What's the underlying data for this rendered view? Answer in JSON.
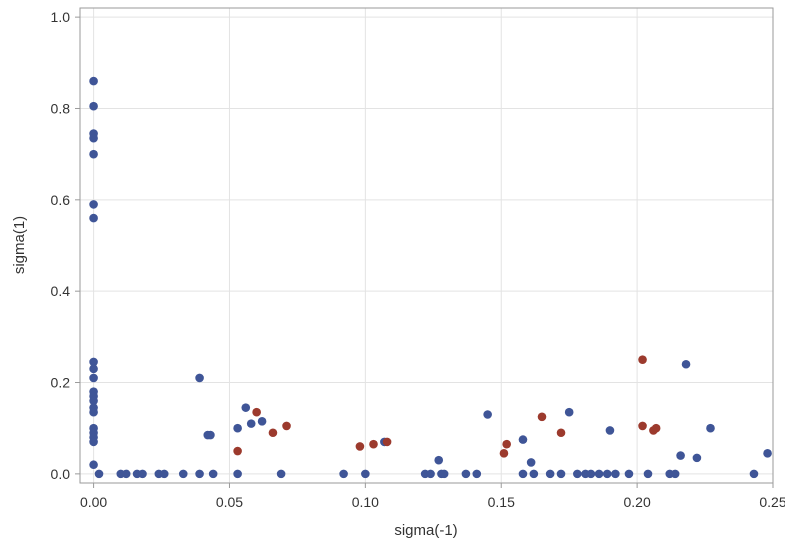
{
  "chart_data": {
    "type": "scatter",
    "title": "",
    "xlabel": "sigma(-1)",
    "ylabel": "sigma(1)",
    "xlim": [
      -0.005,
      0.25
    ],
    "ylim": [
      -0.02,
      1.02
    ],
    "xticks": [
      "0.00",
      "0.05",
      "0.10",
      "0.15",
      "0.20",
      "0.25"
    ],
    "yticks": [
      "0.0",
      "0.2",
      "0.4",
      "0.6",
      "0.8",
      "1.0"
    ],
    "grid": true,
    "legend": "none",
    "colors": {
      "series_a": "#3f5597",
      "series_b": "#9c3a2d",
      "grid": "#e3e3e3",
      "frame": "#9a9a9a"
    },
    "series": [
      {
        "color": "#3f5597",
        "points": [
          [
            0.0,
            0.86
          ],
          [
            0.0,
            0.805
          ],
          [
            0.0,
            0.745
          ],
          [
            0.0,
            0.735
          ],
          [
            0.0,
            0.7
          ],
          [
            0.0,
            0.59
          ],
          [
            0.0,
            0.56
          ],
          [
            0.0,
            0.245
          ],
          [
            0.0,
            0.23
          ],
          [
            0.0,
            0.21
          ],
          [
            0.0,
            0.18
          ],
          [
            0.0,
            0.17
          ],
          [
            0.0,
            0.16
          ],
          [
            0.0,
            0.145
          ],
          [
            0.0,
            0.135
          ],
          [
            0.0,
            0.1
          ],
          [
            0.0,
            0.09
          ],
          [
            0.0,
            0.08
          ],
          [
            0.0,
            0.07
          ],
          [
            0.0,
            0.02
          ],
          [
            0.002,
            0.0
          ],
          [
            0.01,
            0.0
          ],
          [
            0.012,
            0.0
          ],
          [
            0.016,
            0.0
          ],
          [
            0.018,
            0.0
          ],
          [
            0.024,
            0.0
          ],
          [
            0.026,
            0.0
          ],
          [
            0.033,
            0.0
          ],
          [
            0.039,
            0.0
          ],
          [
            0.044,
            0.0
          ],
          [
            0.039,
            0.21
          ],
          [
            0.042,
            0.085
          ],
          [
            0.043,
            0.085
          ],
          [
            0.053,
            0.1
          ],
          [
            0.053,
            0.0
          ],
          [
            0.056,
            0.145
          ],
          [
            0.058,
            0.11
          ],
          [
            0.062,
            0.115
          ],
          [
            0.069,
            0.0
          ],
          [
            0.092,
            0.0
          ],
          [
            0.1,
            0.0
          ],
          [
            0.107,
            0.07
          ],
          [
            0.122,
            0.0
          ],
          [
            0.124,
            0.0
          ],
          [
            0.127,
            0.03
          ],
          [
            0.128,
            0.0
          ],
          [
            0.129,
            0.0
          ],
          [
            0.137,
            0.0
          ],
          [
            0.141,
            0.0
          ],
          [
            0.145,
            0.13
          ],
          [
            0.158,
            0.075
          ],
          [
            0.158,
            0.0
          ],
          [
            0.161,
            0.025
          ],
          [
            0.162,
            0.0
          ],
          [
            0.168,
            0.0
          ],
          [
            0.172,
            0.0
          ],
          [
            0.175,
            0.135
          ],
          [
            0.178,
            0.0
          ],
          [
            0.181,
            0.0
          ],
          [
            0.183,
            0.0
          ],
          [
            0.186,
            0.0
          ],
          [
            0.189,
            0.0
          ],
          [
            0.19,
            0.095
          ],
          [
            0.192,
            0.0
          ],
          [
            0.197,
            0.0
          ],
          [
            0.204,
            0.0
          ],
          [
            0.212,
            0.0
          ],
          [
            0.214,
            0.0
          ],
          [
            0.216,
            0.04
          ],
          [
            0.218,
            0.24
          ],
          [
            0.222,
            0.035
          ],
          [
            0.227,
            0.1
          ],
          [
            0.243,
            0.0
          ],
          [
            0.248,
            0.045
          ]
        ]
      },
      {
        "color": "#9c3a2d",
        "points": [
          [
            0.053,
            0.05
          ],
          [
            0.06,
            0.135
          ],
          [
            0.066,
            0.09
          ],
          [
            0.071,
            0.105
          ],
          [
            0.098,
            0.06
          ],
          [
            0.103,
            0.065
          ],
          [
            0.108,
            0.07
          ],
          [
            0.151,
            0.045
          ],
          [
            0.152,
            0.065
          ],
          [
            0.165,
            0.125
          ],
          [
            0.172,
            0.09
          ],
          [
            0.202,
            0.25
          ],
          [
            0.202,
            0.105
          ],
          [
            0.206,
            0.095
          ],
          [
            0.207,
            0.1
          ]
        ]
      }
    ]
  }
}
